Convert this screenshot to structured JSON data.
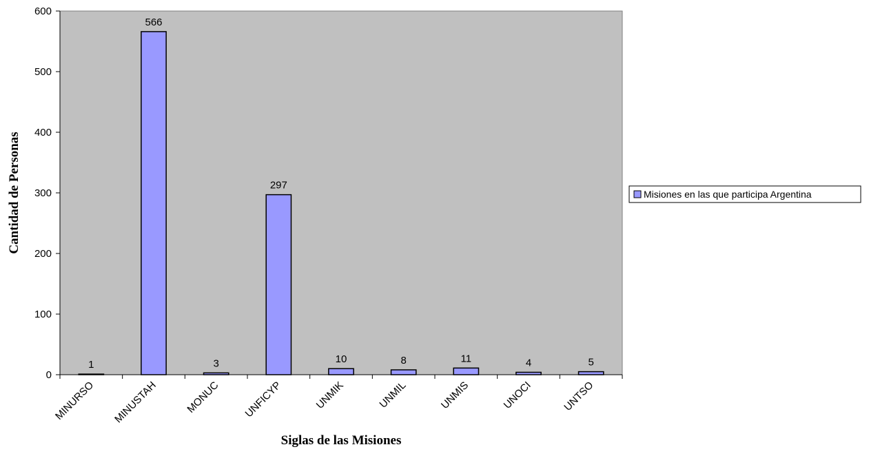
{
  "chart_data": {
    "type": "bar",
    "title": "",
    "xlabel": "Siglas de las Misiones",
    "ylabel": "Cantidad de Personas",
    "categories": [
      "MINURSO",
      "MINUSTAH",
      "MONUC",
      "UNFICYP",
      "UNMIK",
      "UNMIL",
      "UNMIS",
      "UNOCI",
      "UNTSO"
    ],
    "series": [
      {
        "name": "Misiones en las que participa Argentina",
        "values": [
          1,
          566,
          3,
          297,
          10,
          8,
          11,
          4,
          5
        ],
        "color": "#9999ff"
      }
    ],
    "ylim": [
      0,
      600
    ],
    "yticks": [
      0,
      100,
      200,
      300,
      400,
      500,
      600
    ],
    "plot_background": "#c0c0c0",
    "grid": false,
    "legend_position": "right",
    "data_labels": true
  }
}
